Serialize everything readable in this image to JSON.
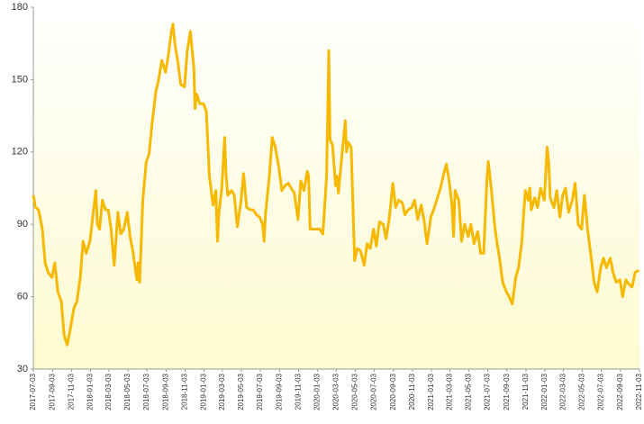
{
  "chart_data": {
    "type": "line",
    "color": "#f7b900",
    "x": [
      "2017-07-03",
      "2017-07-10",
      "2017-07-20",
      "2017-08-01",
      "2017-08-10",
      "2017-08-20",
      "2017-09-01",
      "2017-09-10",
      "2017-09-20",
      "2017-10-01",
      "2017-10-10",
      "2017-10-20",
      "2017-11-01",
      "2017-11-10",
      "2017-11-20",
      "2017-12-01",
      "2017-12-10",
      "2017-12-20",
      "2018-01-01",
      "2018-01-10",
      "2018-01-20",
      "2018-01-25",
      "2018-02-01",
      "2018-02-10",
      "2018-02-20",
      "2018-03-01",
      "2018-03-10",
      "2018-03-20",
      "2018-04-01",
      "2018-04-10",
      "2018-04-20",
      "2018-05-01",
      "2018-05-10",
      "2018-05-20",
      "2018-06-01",
      "2018-06-05",
      "2018-06-10",
      "2018-06-20",
      "2018-07-01",
      "2018-07-10",
      "2018-07-20",
      "2018-08-01",
      "2018-08-10",
      "2018-08-20",
      "2018-09-01",
      "2018-09-10",
      "2018-09-20",
      "2018-09-25",
      "2018-10-01",
      "2018-10-10",
      "2018-10-20",
      "2018-11-01",
      "2018-11-10",
      "2018-11-20",
      "2018-12-01",
      "2018-12-05",
      "2018-12-10",
      "2018-12-20",
      "2019-01-01",
      "2019-01-10",
      "2019-01-15",
      "2019-01-20",
      "2019-02-01",
      "2019-02-10",
      "2019-02-15",
      "2019-02-20",
      "2019-03-01",
      "2019-03-10",
      "2019-03-15",
      "2019-03-20",
      "2019-04-01",
      "2019-04-10",
      "2019-04-20",
      "2019-05-01",
      "2019-05-10",
      "2019-05-20",
      "2019-06-01",
      "2019-06-10",
      "2019-06-20",
      "2019-07-01",
      "2019-07-10",
      "2019-07-15",
      "2019-07-20",
      "2019-08-01",
      "2019-08-10",
      "2019-08-20",
      "2019-09-01",
      "2019-09-10",
      "2019-09-20",
      "2019-10-01",
      "2019-10-10",
      "2019-10-20",
      "2019-11-01",
      "2019-11-10",
      "2019-11-20",
      "2019-12-01",
      "2019-12-05",
      "2019-12-10",
      "2019-12-20",
      "2020-01-01",
      "2020-01-10",
      "2020-01-20",
      "2020-02-01",
      "2020-02-08",
      "2020-02-12",
      "2020-02-20",
      "2020-03-01",
      "2020-03-05",
      "2020-03-10",
      "2020-03-20",
      "2020-04-01",
      "2020-04-05",
      "2020-04-10",
      "2020-04-20",
      "2020-05-01",
      "2020-05-10",
      "2020-05-20",
      "2020-06-01",
      "2020-06-10",
      "2020-06-20",
      "2020-07-01",
      "2020-07-10",
      "2020-07-20",
      "2020-08-01",
      "2020-08-10",
      "2020-08-20",
      "2020-09-01",
      "2020-09-10",
      "2020-09-20",
      "2020-10-01",
      "2020-10-10",
      "2020-10-20",
      "2020-11-01",
      "2020-11-10",
      "2020-11-20",
      "2020-12-01",
      "2020-12-10",
      "2020-12-20",
      "2021-01-01",
      "2021-01-10",
      "2021-01-20",
      "2021-02-01",
      "2021-02-10",
      "2021-02-20",
      "2021-03-01",
      "2021-03-10",
      "2021-03-15",
      "2021-03-20",
      "2021-04-01",
      "2021-04-10",
      "2021-04-20",
      "2021-05-01",
      "2021-05-10",
      "2021-05-20",
      "2021-06-01",
      "2021-06-10",
      "2021-06-20",
      "2021-07-01",
      "2021-07-05",
      "2021-07-15",
      "2021-07-25",
      "2021-08-01",
      "2021-08-10",
      "2021-08-20",
      "2021-09-01",
      "2021-09-10",
      "2021-09-20",
      "2021-10-01",
      "2021-10-10",
      "2021-10-20",
      "2021-11-01",
      "2021-11-10",
      "2021-11-15",
      "2021-11-20",
      "2021-12-01",
      "2021-12-10",
      "2021-12-20",
      "2022-01-01",
      "2022-01-10",
      "2022-01-15",
      "2022-01-20",
      "2022-02-01",
      "2022-02-10",
      "2022-02-20",
      "2022-03-01",
      "2022-03-10",
      "2022-03-20",
      "2022-04-01",
      "2022-04-10",
      "2022-04-20",
      "2022-05-01",
      "2022-05-10",
      "2022-05-20",
      "2022-06-01",
      "2022-06-10",
      "2022-06-20",
      "2022-07-01",
      "2022-07-10",
      "2022-07-20",
      "2022-08-01",
      "2022-08-10",
      "2022-08-20",
      "2022-09-01",
      "2022-09-10",
      "2022-09-20",
      "2022-10-01",
      "2022-10-10",
      "2022-10-20",
      "2022-11-01"
    ],
    "values": [
      102,
      97,
      96,
      88,
      74,
      70,
      68,
      74,
      62,
      58,
      44,
      40,
      48,
      55,
      58,
      68,
      83,
      78,
      83,
      93,
      104,
      90,
      88,
      100,
      96,
      96,
      88,
      73,
      95,
      86,
      88,
      95,
      85,
      78,
      67,
      74,
      66,
      100,
      116,
      119,
      132,
      145,
      150,
      158,
      153,
      160,
      170,
      173,
      165,
      158,
      148,
      147,
      162,
      170,
      155,
      138,
      144,
      140,
      140,
      137,
      124,
      110,
      98,
      104,
      83,
      95,
      105,
      126,
      110,
      102,
      104,
      102,
      89,
      99,
      111,
      97,
      96,
      96,
      94,
      93,
      90,
      83,
      95,
      110,
      126,
      122,
      113,
      104,
      106,
      107,
      105,
      103,
      92,
      108,
      104,
      112,
      110,
      88,
      88,
      88,
      88,
      86,
      110,
      162,
      125,
      123,
      106,
      110,
      103,
      117,
      133,
      120,
      124,
      122,
      75,
      80,
      79,
      73,
      82,
      80,
      88,
      81,
      91,
      90,
      84,
      92,
      107,
      97,
      100,
      99,
      94,
      96,
      97,
      100,
      92,
      98,
      92,
      82,
      93,
      96,
      100,
      105,
      110,
      115,
      108,
      98,
      85,
      104,
      100,
      83,
      90,
      85,
      90,
      82,
      87,
      78,
      78,
      110,
      116,
      104,
      90,
      83,
      76,
      66,
      62,
      60,
      57,
      68,
      72,
      82,
      104,
      100,
      105,
      96,
      101,
      97,
      105,
      100,
      122,
      116,
      101,
      97,
      104,
      93,
      102,
      105,
      95,
      100,
      107,
      90,
      88,
      102,
      88,
      76,
      66,
      62,
      72,
      76,
      72,
      76,
      70,
      66,
      67,
      60,
      67,
      65,
      64,
      70,
      71
    ],
    "xlim": [
      "2017-07-03",
      "2022-11-03"
    ],
    "xticks": [
      "2017-07-03",
      "2017-09-03",
      "2017-11-03",
      "2018-01-03",
      "2018-03-03",
      "2018-05-03",
      "2018-07-03",
      "2018-09-03",
      "2018-11-03",
      "2019-01-03",
      "2019-03-03",
      "2019-05-03",
      "2019-07-03",
      "2019-09-03",
      "2019-11-03",
      "2020-01-03",
      "2020-03-03",
      "2020-05-03",
      "2020-07-03",
      "2020-09-03",
      "2020-11-03",
      "2021-01-03",
      "2021-03-03",
      "2021-05-03",
      "2021-07-03",
      "2021-09-03",
      "2021-11-03",
      "2022-01-03",
      "2022-03-03",
      "2022-05-03",
      "2022-07-03",
      "2022-09-03",
      "2022-11-03"
    ],
    "ylim": [
      30,
      180
    ],
    "yticks": [
      30,
      60,
      90,
      120,
      150,
      180
    ],
    "grid": false
  }
}
